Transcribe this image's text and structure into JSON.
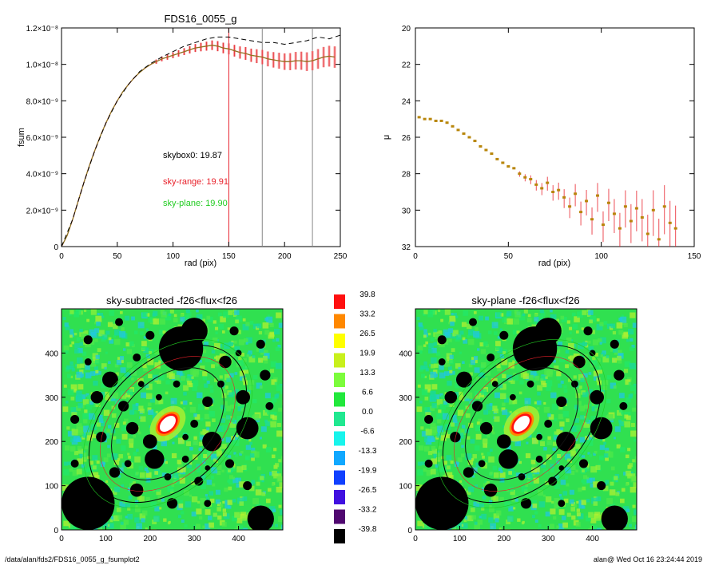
{
  "colors": {
    "sky_range": "#e8202a",
    "sky_plane": "#22cc22",
    "skybox": "#000000",
    "model_dash": "#000000",
    "profile_band": "#f4a6a6"
  },
  "chart_data": [
    {
      "type": "line",
      "title": "FDS16_0055_g",
      "xlabel": "rad (pix)",
      "ylabel": "fsum",
      "xlim": [
        0,
        250
      ],
      "ylim": [
        0,
        1.2e-08
      ],
      "x_ticks": [
        "0",
        "50",
        "100",
        "150",
        "200",
        "250"
      ],
      "y_ticks": [
        "0",
        "2.0×10⁻⁹",
        "4.0×10⁻⁹",
        "6.0×10⁻⁹",
        "8.0×10⁻⁹",
        "1.0×10⁻⁸",
        "1.2×10⁻⁸"
      ],
      "vertical_lines": [
        {
          "x": 150,
          "color": "#e8202a"
        },
        {
          "x": 180,
          "color": "#888888"
        },
        {
          "x": 225,
          "color": "#888888"
        }
      ],
      "annotations": [
        {
          "text": "skybox0: 19.87",
          "color": "#000000"
        },
        {
          "text": "sky-range: 19.91",
          "color": "#e8202a"
        },
        {
          "text": "sky-plane: 19.90",
          "color": "#22cc22"
        }
      ],
      "series": [
        {
          "x": [
            0,
            5,
            10,
            15,
            20,
            25,
            30,
            35,
            40,
            45,
            50,
            55,
            60,
            65,
            70,
            75,
            80,
            85,
            90,
            95,
            100,
            105,
            110,
            115,
            120,
            125,
            130,
            135,
            140,
            145,
            150,
            155,
            160,
            165,
            170,
            175,
            180,
            185,
            190,
            195,
            200,
            205,
            210,
            215,
            220,
            225,
            230,
            235,
            240,
            245
          ],
          "y": [
            0,
            6e-10,
            1.5e-09,
            2.5e-09,
            3.5e-09,
            4.45e-09,
            5.3e-09,
            6.1e-09,
            6.8e-09,
            7.45e-09,
            8e-09,
            8.5e-09,
            8.9e-09,
            9.25e-09,
            9.55e-09,
            9.8e-09,
            1e-08,
            1.015e-08,
            1.03e-08,
            1.04e-08,
            1.05e-08,
            1.06e-08,
            1.07e-08,
            1.08e-08,
            1.09e-08,
            1.095e-08,
            1.1e-08,
            1.105e-08,
            1.1e-08,
            1.09e-08,
            1.085e-08,
            1.075e-08,
            1.065e-08,
            1.06e-08,
            1.05e-08,
            1.045e-08,
            1.04e-08,
            1.03e-08,
            1.025e-08,
            1.02e-08,
            1.015e-08,
            1.015e-08,
            1.02e-08,
            1.02e-08,
            1.015e-08,
            1.02e-08,
            1.03e-08,
            1.04e-08,
            1.045e-08,
            1.04e-08
          ]
        },
        {
          "x": [
            0,
            10,
            20,
            30,
            40,
            50,
            60,
            70,
            80,
            90,
            100,
            110,
            120,
            130,
            140,
            150,
            160,
            170,
            180,
            190,
            200,
            210,
            220,
            230,
            240,
            250
          ],
          "y": [
            0,
            1.5e-09,
            3.5e-09,
            5.3e-09,
            6.8e-09,
            8e-09,
            8.9e-09,
            9.6e-09,
            1.005e-08,
            1.04e-08,
            1.07e-08,
            1.1e-08,
            1.12e-08,
            1.14e-08,
            1.15e-08,
            1.15e-08,
            1.14e-08,
            1.13e-08,
            1.12e-08,
            1.12e-08,
            1.11e-08,
            1.12e-08,
            1.13e-08,
            1.15e-08,
            1.14e-08,
            1.16e-08
          ]
        }
      ]
    },
    {
      "type": "scatter",
      "xlabel": "rad (pix)",
      "ylabel": "μ",
      "xlim": [
        0,
        150
      ],
      "ylim": [
        32,
        20
      ],
      "x_ticks": [
        "0",
        "50",
        "100",
        "150"
      ],
      "y_ticks": [
        "20",
        "22",
        "24",
        "26",
        "28",
        "30",
        "32"
      ],
      "series": [
        {
          "x": [
            2,
            5,
            8,
            11,
            14,
            17,
            20,
            23,
            26,
            29,
            32,
            35,
            38,
            41,
            44,
            47,
            50,
            53,
            56,
            59,
            62,
            65,
            68,
            71,
            74,
            77,
            80,
            83,
            86,
            89,
            92,
            95,
            98,
            101,
            104,
            107,
            110,
            113,
            116,
            119,
            122,
            125,
            128,
            131,
            134,
            137,
            140
          ],
          "y": [
            24.9,
            25.0,
            25.0,
            25.1,
            25.1,
            25.2,
            25.4,
            25.6,
            25.8,
            26.0,
            26.2,
            26.5,
            26.7,
            26.9,
            27.2,
            27.4,
            27.6,
            27.7,
            28.0,
            28.2,
            28.3,
            28.6,
            28.8,
            28.5,
            29.0,
            28.9,
            29.3,
            29.8,
            29.1,
            30.1,
            29.5,
            30.5,
            29.2,
            30.8,
            29.6,
            30.2,
            31.0,
            29.8,
            30.6,
            29.9,
            30.4,
            31.3,
            30.0,
            31.6,
            29.8,
            30.7,
            31.0
          ]
        }
      ]
    },
    {
      "type": "heatmap",
      "title": "sky-subtracted -f26<flux<f26",
      "xlim": [
        0,
        500
      ],
      "ylim": [
        0,
        500
      ],
      "x_ticks": [
        "0",
        "100",
        "200",
        "300",
        "400"
      ],
      "y_ticks": [
        "0",
        "100",
        "200",
        "300",
        "400"
      ]
    },
    {
      "type": "heatmap",
      "title": "sky-plane -f26<flux<f26",
      "xlim": [
        0,
        500
      ],
      "ylim": [
        0,
        500
      ],
      "x_ticks": [
        "0",
        "100",
        "200",
        "300",
        "400"
      ],
      "y_ticks": [
        "0",
        "100",
        "200",
        "300",
        "400"
      ]
    }
  ],
  "colorbar": {
    "labels": [
      "39.8",
      "33.2",
      "26.5",
      "19.9",
      "13.3",
      "6.6",
      "0.0",
      "-6.6",
      "-13.3",
      "-19.9",
      "-26.5",
      "-33.2",
      "-39.8"
    ],
    "colors": [
      "#ff1010",
      "#ff8800",
      "#ffff00",
      "#c8f01c",
      "#7cfc3c",
      "#22e83c",
      "#20e890",
      "#18f4ec",
      "#10a8ff",
      "#1040ff",
      "#4010e0",
      "#500870",
      "#000000"
    ]
  },
  "footer": {
    "left": "/data/alan/fds2/FDS16_0055_g_fsumplot2",
    "right": "alan@  Wed Oct 16 23:24:44 2019"
  }
}
